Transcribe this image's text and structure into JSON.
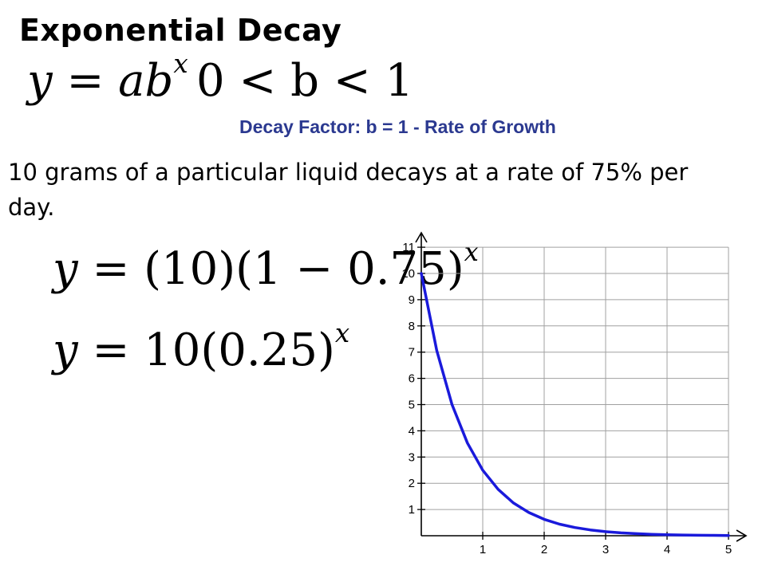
{
  "slide": {
    "title": "Exponential Decay",
    "formula_general": {
      "lhs": "y",
      "rhs_base": "ab",
      "exponent": "x"
    },
    "condition": "0 < b < 1",
    "decay_factor_note": "Decay Factor: b = 1 - Rate of Growth",
    "decay_factor_color": "#2b3990",
    "problem_text": "10 grams of a particular liquid decays at a rate of 75% per day.",
    "equation_step1": {
      "lhs": "y",
      "rhs": "(10)(1 − 0.75)",
      "exponent": "x"
    },
    "equation_step2": {
      "lhs": "y",
      "rhs": "10(0.25)",
      "exponent": "x"
    }
  },
  "chart_data": {
    "type": "line",
    "function": "y = 10(0.25)^x",
    "x": [
      0,
      0.25,
      0.5,
      0.75,
      1,
      1.25,
      1.5,
      1.75,
      2,
      2.25,
      2.5,
      2.75,
      3,
      3.25,
      3.5,
      3.75,
      4,
      4.25,
      4.5,
      4.75,
      5
    ],
    "series": [
      {
        "values": [
          10,
          7.071,
          5,
          3.536,
          2.5,
          1.768,
          1.25,
          0.884,
          0.625,
          0.442,
          0.3125,
          0.221,
          0.156,
          0.11,
          0.078,
          0.055,
          0.039,
          0.028,
          0.0195,
          0.0138,
          0.0098
        ],
        "color": "#1a1adb"
      }
    ],
    "xlim": [
      0,
      5
    ],
    "ylim": [
      0,
      11
    ],
    "x_ticks": [
      "1",
      "2",
      "3",
      "4",
      "5"
    ],
    "y_ticks": [
      "1",
      "2",
      "3",
      "4",
      "5",
      "6",
      "7",
      "8",
      "9",
      "10",
      "11"
    ],
    "grid": true,
    "title": "",
    "xlabel": "",
    "ylabel": ""
  }
}
